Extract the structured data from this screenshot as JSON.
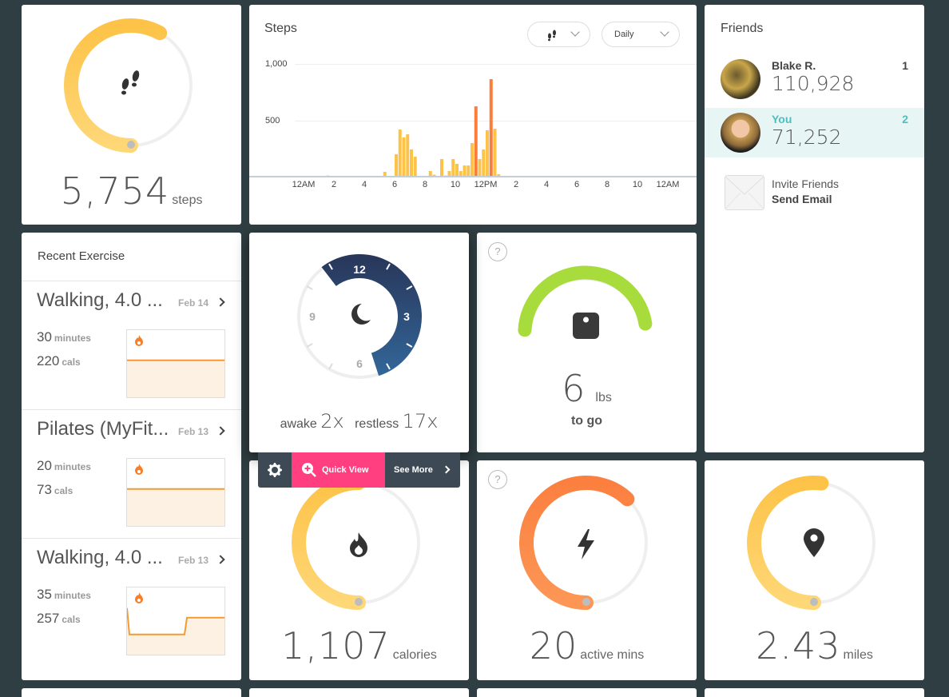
{
  "steps_tile": {
    "value": "5,754",
    "unit": "steps",
    "goal_progress": 0.58,
    "color_start": "#fdbd3a",
    "color_end": "#fed777"
  },
  "steps_chart": {
    "title": "Steps",
    "activity_filter_icon": "footsteps-icon",
    "period_label": "Daily"
  },
  "chart_data": {
    "type": "bar",
    "title": "Steps",
    "xlabel": "",
    "ylabel": "",
    "ylim": [
      0,
      1000
    ],
    "yticks": [
      "500",
      "1,000"
    ],
    "ytick_values": [
      500,
      1000
    ],
    "xticks": [
      "12AM",
      "2",
      "4",
      "6",
      "8",
      "10",
      "12PM",
      "2",
      "4",
      "6",
      "8",
      "10",
      "12AM"
    ],
    "interval_minutes": 15,
    "highlight_threshold": 500,
    "colors": {
      "normal": "#fdc348",
      "highlight": "#fb7d3c"
    },
    "series": [
      {
        "name": "Steps per 15 min",
        "points": [
          {
            "t": 1.5,
            "v": 3
          },
          {
            "t": 5.25,
            "v": 36
          },
          {
            "t": 6.0,
            "v": 193
          },
          {
            "t": 6.25,
            "v": 414
          },
          {
            "t": 6.5,
            "v": 343
          },
          {
            "t": 6.75,
            "v": 371
          },
          {
            "t": 7.0,
            "v": 236
          },
          {
            "t": 7.25,
            "v": 171
          },
          {
            "t": 8.25,
            "v": 43
          },
          {
            "t": 8.5,
            "v": 10
          },
          {
            "t": 9.0,
            "v": 150
          },
          {
            "t": 9.25,
            "v": 3
          },
          {
            "t": 9.5,
            "v": 43
          },
          {
            "t": 9.75,
            "v": 150
          },
          {
            "t": 10.0,
            "v": 107
          },
          {
            "t": 10.25,
            "v": 43
          },
          {
            "t": 10.5,
            "v": 93
          },
          {
            "t": 10.75,
            "v": 93
          },
          {
            "t": 11.0,
            "v": 293
          },
          {
            "t": 11.25,
            "v": 621
          },
          {
            "t": 11.5,
            "v": 150
          },
          {
            "t": 11.75,
            "v": 236
          },
          {
            "t": 12.0,
            "v": 407
          },
          {
            "t": 12.25,
            "v": 864
          },
          {
            "t": 12.5,
            "v": 421
          },
          {
            "t": 12.75,
            "v": 14
          }
        ]
      }
    ]
  },
  "friends": {
    "title": "Friends",
    "list": [
      {
        "name": "Blake R.",
        "steps": "110,928",
        "rank": "1",
        "is_you": false
      },
      {
        "name": "You",
        "steps": "71,252",
        "rank": "2",
        "is_you": true
      }
    ],
    "invite": {
      "line1": "Invite Friends",
      "line2": "Send Email"
    }
  },
  "recent_exercise": {
    "title": "Recent Exercise",
    "items": [
      {
        "title": "Walking, 4.0 ...",
        "date": "Feb 14",
        "minutes": "30",
        "minutes_unit": "minutes",
        "cals": "220",
        "cals_unit": "cals",
        "profile": [
          0.55,
          0.55
        ]
      },
      {
        "title": "Pilates (MyFit...",
        "date": "Feb 13",
        "minutes": "20",
        "minutes_unit": "minutes",
        "cals": "73",
        "cals_unit": "cals",
        "profile": [
          0.55,
          0.55
        ]
      },
      {
        "title": "Walking, 4.0 ...",
        "date": "Feb 13",
        "minutes": "35",
        "minutes_unit": "minutes",
        "cals": "257",
        "cals_unit": "cals",
        "profile": [
          0.55,
          0.3,
          0.3,
          0.3,
          0.55,
          0.55
        ]
      }
    ]
  },
  "sleep": {
    "awake_label": "awake",
    "awake_value": "2x",
    "restless_label": "restless",
    "restless_value": "17x",
    "clock_labels": [
      "12",
      "3",
      "6",
      "9"
    ],
    "start_hour": 10.75,
    "end_hour": 5.4
  },
  "toolbar": {
    "quick_view": "Quick View",
    "see_more": "See More"
  },
  "weight": {
    "value": "6",
    "unit": "lbs",
    "caption": "to go",
    "progress": 0.97,
    "help": "?",
    "color": "#a7dc3c"
  },
  "calories": {
    "value": "1,107",
    "unit": "calories",
    "progress": 0.5
  },
  "active": {
    "value": "20",
    "unit": "active mins",
    "progress": 0.62,
    "help": "?"
  },
  "distance": {
    "value": "2.43",
    "unit": "miles",
    "progress": 0.52
  }
}
